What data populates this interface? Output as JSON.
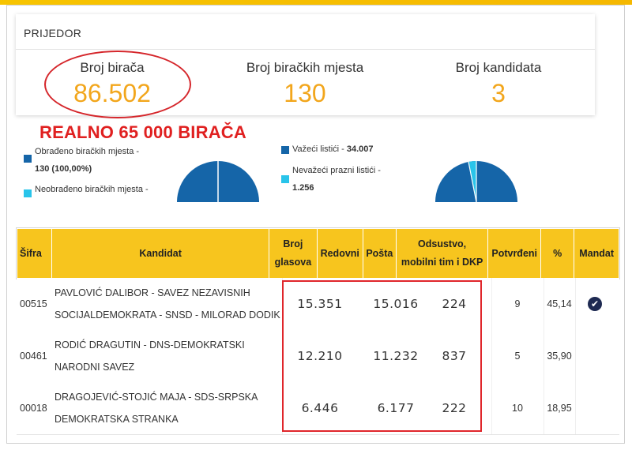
{
  "header": {
    "municipality": "PRIJEDOR",
    "stats": [
      {
        "label": "Broj birača",
        "value": "86.502"
      },
      {
        "label": "Broj biračkih mjesta",
        "value": "130"
      },
      {
        "label": "Broj kandidata",
        "value": "3"
      }
    ]
  },
  "annotation": "REALNO 65 000 BIRAČA",
  "charts": {
    "polling_legend": {
      "processed_label": "Obrađeno biračkih mjesta -",
      "processed_value": "130 (100,00%)",
      "unprocessed_label": "Neobrađeno biračkih mjesta -"
    },
    "ballots_legend": {
      "valid_label": "Važeći listići -",
      "valid_value": "34.007",
      "invalid_label": "Nevažeći prazni listići -",
      "invalid_value": "1.256"
    }
  },
  "table": {
    "headers": [
      "Šifra",
      "Kandidat",
      "Broj glasova",
      "Redovni",
      "Pošta",
      "Odsustvo, mobilni tim i DKP",
      "Potvrđeni",
      "%",
      "Mandat"
    ],
    "rows": [
      {
        "code": "00515",
        "candidate_l1": "PAVLOVIĆ DALIBOR - SAVEZ NEZAVISNIH",
        "candidate_l2": "SOCIJALDEMOKRATA - SNSD - MILORAD DODIK",
        "votes": "15.351",
        "regular": "15.016",
        "absent": "224",
        "confirmed": "9",
        "pct": "45,14",
        "mandate": true
      },
      {
        "code": "00461",
        "candidate_l1": "RODIĆ DRAGUTIN - DNS-DEMOKRATSKI",
        "candidate_l2": "NARODNI SAVEZ",
        "votes": "12.210",
        "regular": "11.232",
        "absent": "837",
        "confirmed": "5",
        "pct": "35,90",
        "mandate": false
      },
      {
        "code": "00018",
        "candidate_l1": "DRAGOJEVIĆ-STOJIĆ MAJA - SDS-SRPSKA",
        "candidate_l2": "DEMOKRATSKA STRANKA",
        "votes": "6.446",
        "regular": "6.177",
        "absent": "222",
        "confirmed": "10",
        "pct": "18,95",
        "mandate": false
      }
    ]
  },
  "colors": {
    "accent": "#f2a61c",
    "header_bg": "#f7c51e",
    "pie_dark": "#1565a8",
    "pie_light": "#29c4ea",
    "annotation_red": "#e0262b"
  },
  "icons": {
    "mandate": "check-circle-icon"
  }
}
